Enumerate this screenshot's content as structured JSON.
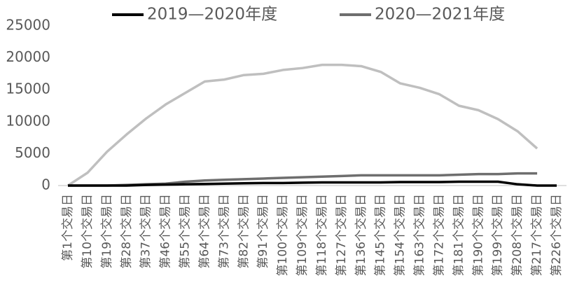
{
  "chart_data": {
    "type": "line",
    "categories": [
      "第1个交易日",
      "第10个交易日",
      "第19个交易日",
      "第28个交易日",
      "第37个交易日",
      "第46个交易日",
      "第55个交易日",
      "第64个交易日",
      "第73个交易日",
      "第82个交易日",
      "第91个交易日",
      "第100个交易日",
      "第109个交易日",
      "第118个交易日",
      "第127个交易日",
      "第136个交易日",
      "第145个交易日",
      "第154个交易日",
      "第163个交易日",
      "第172个交易日",
      "第181个交易日",
      "第190个交易日",
      "第199个交易日",
      "第208个交易日",
      "第217个交易日",
      "第226个交易日"
    ],
    "series": [
      {
        "name": "2019—2020年度",
        "color": "#000000",
        "values": [
          0,
          0,
          0,
          0,
          100,
          150,
          200,
          250,
          300,
          350,
          400,
          400,
          450,
          500,
          500,
          500,
          500,
          550,
          550,
          550,
          600,
          600,
          600,
          200,
          0,
          0
        ]
      },
      {
        "name": "2020—2021年度",
        "color": "#6e6e6e",
        "values": [
          0,
          0,
          0,
          100,
          200,
          300,
          600,
          800,
          900,
          1000,
          1100,
          1200,
          1300,
          1400,
          1500,
          1600,
          1600,
          1600,
          1600,
          1600,
          1700,
          1800,
          1800,
          1900,
          1900,
          null
        ]
      },
      {
        "color": "#bfbfbf",
        "values": [
          0,
          2000,
          5300,
          8000,
          10500,
          12700,
          14500,
          16300,
          16600,
          17300,
          17500,
          18100,
          18400,
          18900,
          18900,
          18700,
          17800,
          16000,
          15300,
          14300,
          12500,
          11800,
          10400,
          8500,
          5800,
          null
        ]
      }
    ],
    "ylim": [
      0,
      25000
    ],
    "yticks": [
      0,
      5000,
      10000,
      15000,
      20000,
      25000
    ],
    "grid": false
  }
}
